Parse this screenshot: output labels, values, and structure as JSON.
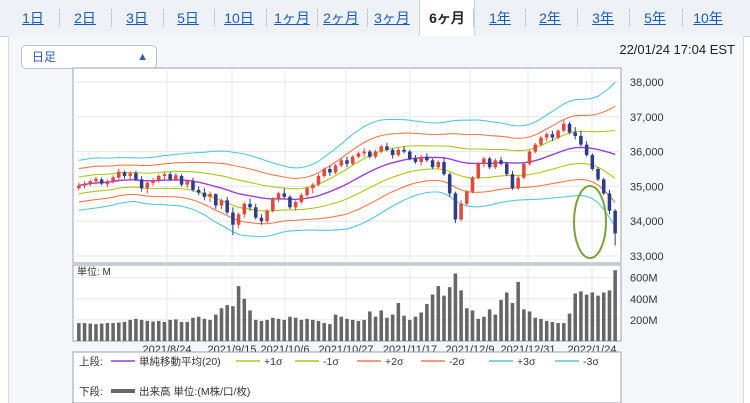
{
  "tabs": [
    {
      "label": "1日",
      "active": false
    },
    {
      "label": "2日",
      "active": false
    },
    {
      "label": "3日",
      "active": false
    },
    {
      "label": "5日",
      "active": false
    },
    {
      "label": "10日",
      "active": false
    },
    {
      "label": "1ヶ月",
      "active": false
    },
    {
      "label": "2ヶ月",
      "active": false
    },
    {
      "label": "3ヶ月",
      "active": false
    },
    {
      "label": "6ヶ月",
      "active": true
    },
    {
      "label": "1年",
      "active": false
    },
    {
      "label": "2年",
      "active": false
    },
    {
      "label": "3年",
      "active": false
    },
    {
      "label": "5年",
      "active": false
    },
    {
      "label": "10年",
      "active": false
    }
  ],
  "interval_select": {
    "value": "日足"
  },
  "timestamp": "22/01/24 17:04 EST",
  "colors": {
    "up": "#e0493d",
    "down": "#2f3c8a",
    "sma": "#9b3fd0",
    "p1": "#a8c91a",
    "m1": "#a8c91a",
    "p2": "#f07a4e",
    "m2": "#f07a4e",
    "p3": "#55c7de",
    "m3": "#55c7de",
    "volume": "#666666",
    "highlight": "#7aa23a"
  },
  "chart_data": {
    "type": "candlestick",
    "price_ticks": [
      38000,
      37000,
      36000,
      35000,
      34000,
      33000
    ],
    "price_tick_labels": [
      "38,000",
      "37,000",
      "36,000",
      "35,000",
      "34,000",
      "33,000"
    ],
    "ylim": [
      32800,
      38400
    ],
    "date_labels": [
      "2021/8/24",
      "2021/9/15",
      "2021/10/6",
      "2021/10/27",
      "2021/11/17",
      "2021/12/9",
      "2021/12/31",
      "2022/1/24"
    ],
    "volume_unit_label": "単位: M",
    "volume_ticks": [
      600,
      400,
      200
    ],
    "volume_tick_labels": [
      "600M",
      "400M",
      "200M"
    ],
    "volume_ylim": [
      0,
      720
    ],
    "ohlc": [
      [
        34950,
        35100,
        34880,
        35020
      ],
      [
        35020,
        35150,
        34950,
        35080
      ],
      [
        35080,
        35200,
        35000,
        35150
      ],
      [
        35150,
        35280,
        35050,
        35220
      ],
      [
        35200,
        35260,
        35030,
        35080
      ],
      [
        35060,
        35200,
        34980,
        35150
      ],
      [
        35150,
        35320,
        35080,
        35260
      ],
      [
        35250,
        35500,
        35200,
        35420
      ],
      [
        35400,
        35450,
        35220,
        35300
      ],
      [
        35300,
        35420,
        35200,
        35380
      ],
      [
        35380,
        35450,
        35150,
        35200
      ],
      [
        35200,
        35300,
        34850,
        34950
      ],
      [
        34950,
        35150,
        34800,
        35100
      ],
      [
        35100,
        35250,
        35020,
        35180
      ],
      [
        35180,
        35350,
        35100,
        35300
      ],
      [
        35300,
        35400,
        35200,
        35350
      ],
      [
        35350,
        35420,
        35150,
        35200
      ],
      [
        35200,
        35380,
        35150,
        35320
      ],
      [
        35300,
        35350,
        35000,
        35050
      ],
      [
        35050,
        35200,
        34950,
        35150
      ],
      [
        35150,
        35250,
        34850,
        34900
      ],
      [
        34900,
        35000,
        34750,
        34820
      ],
      [
        34820,
        34950,
        34600,
        34700
      ],
      [
        34700,
        34850,
        34550,
        34780
      ],
      [
        34780,
        34800,
        34350,
        34450
      ],
      [
        34450,
        34650,
        34350,
        34600
      ],
      [
        34600,
        34700,
        34200,
        34250
      ],
      [
        34250,
        34400,
        33600,
        33900
      ],
      [
        33900,
        34250,
        33800,
        34200
      ],
      [
        34200,
        34550,
        34100,
        34500
      ],
      [
        34500,
        34650,
        34300,
        34400
      ],
      [
        34400,
        34500,
        34050,
        34100
      ],
      [
        34100,
        34200,
        33900,
        34000
      ],
      [
        34000,
        34350,
        33950,
        34300
      ],
      [
        34300,
        34700,
        34250,
        34650
      ],
      [
        34650,
        34850,
        34550,
        34800
      ],
      [
        34800,
        34950,
        34650,
        34700
      ],
      [
        34700,
        34750,
        34350,
        34400
      ],
      [
        34400,
        34600,
        34300,
        34550
      ],
      [
        34550,
        34800,
        34500,
        34750
      ],
      [
        34750,
        35000,
        34700,
        34950
      ],
      [
        34950,
        35100,
        34800,
        35050
      ],
      [
        35050,
        35350,
        35000,
        35300
      ],
      [
        35300,
        35550,
        35250,
        35500
      ],
      [
        35500,
        35600,
        35300,
        35400
      ],
      [
        35400,
        35650,
        35350,
        35600
      ],
      [
        35600,
        35800,
        35550,
        35750
      ],
      [
        35750,
        35850,
        35550,
        35650
      ],
      [
        35650,
        35900,
        35600,
        35850
      ],
      [
        35850,
        36000,
        35800,
        35950
      ],
      [
        35950,
        36100,
        35850,
        36000
      ],
      [
        36000,
        36050,
        35800,
        35850
      ],
      [
        35850,
        36050,
        35800,
        36000
      ],
      [
        36000,
        36200,
        35950,
        36150
      ],
      [
        36150,
        36250,
        36000,
        36050
      ],
      [
        36050,
        36100,
        35800,
        35900
      ],
      [
        35900,
        36100,
        35850,
        36050
      ],
      [
        36050,
        36150,
        35950,
        36000
      ],
      [
        36000,
        36050,
        35750,
        35800
      ],
      [
        35800,
        35900,
        35650,
        35700
      ],
      [
        35700,
        35900,
        35600,
        35850
      ],
      [
        35850,
        35950,
        35700,
        35750
      ],
      [
        35750,
        35800,
        35500,
        35550
      ],
      [
        35550,
        35750,
        35500,
        35700
      ],
      [
        35700,
        35800,
        35300,
        35350
      ],
      [
        35350,
        35400,
        34700,
        34800
      ],
      [
        34800,
        34850,
        33950,
        34050
      ],
      [
        34050,
        34600,
        34000,
        34500
      ],
      [
        34500,
        34900,
        34450,
        34850
      ],
      [
        34850,
        35300,
        34800,
        35250
      ],
      [
        35250,
        35700,
        35200,
        35650
      ],
      [
        35650,
        35850,
        35550,
        35800
      ],
      [
        35800,
        35850,
        35500,
        35550
      ],
      [
        35550,
        35800,
        35500,
        35750
      ],
      [
        35750,
        35850,
        35600,
        35650
      ],
      [
        35650,
        35700,
        35300,
        35350
      ],
      [
        35350,
        35450,
        34900,
        34950
      ],
      [
        34950,
        35300,
        34900,
        35250
      ],
      [
        35250,
        35700,
        35200,
        35650
      ],
      [
        35650,
        36050,
        35600,
        36000
      ],
      [
        36000,
        36250,
        35950,
        36200
      ],
      [
        36200,
        36450,
        36150,
        36400
      ],
      [
        36400,
        36550,
        36300,
        36500
      ],
      [
        36500,
        36600,
        36300,
        36400
      ],
      [
        36400,
        36650,
        36350,
        36600
      ],
      [
        36600,
        36900,
        36550,
        36800
      ],
      [
        36800,
        36850,
        36500,
        36550
      ],
      [
        36550,
        36700,
        36350,
        36450
      ],
      [
        36450,
        36600,
        36150,
        36200
      ],
      [
        36200,
        36300,
        35850,
        35900
      ],
      [
        35900,
        35950,
        35450,
        35500
      ],
      [
        35500,
        35550,
        35150,
        35200
      ],
      [
        35200,
        35250,
        34750,
        34800
      ],
      [
        34800,
        34900,
        34200,
        34300
      ],
      [
        34300,
        34350,
        33300,
        33650
      ]
    ],
    "sma": [
      35030,
      35055,
      35080,
      35100,
      35110,
      35120,
      35140,
      35170,
      35180,
      35190,
      35190,
      35170,
      35160,
      35160,
      35170,
      35180,
      35180,
      35190,
      35180,
      35170,
      35150,
      35120,
      35080,
      35040,
      34990,
      34950,
      34900,
      34840,
      34790,
      34760,
      34730,
      34700,
      34670,
      34650,
      34640,
      34640,
      34640,
      34630,
      34630,
      34640,
      34660,
      34690,
      34730,
      34790,
      34850,
      34920,
      34990,
      35070,
      35160,
      35250,
      35340,
      35420,
      35500,
      35570,
      35630,
      35680,
      35720,
      35760,
      35790,
      35810,
      35820,
      35830,
      35830,
      35830,
      35820,
      35790,
      35740,
      35700,
      35670,
      35660,
      35660,
      35660,
      35660,
      35670,
      35680,
      35680,
      35670,
      35670,
      35680,
      35700,
      35740,
      35790,
      35850,
      35910,
      35970,
      36030,
      36080,
      36110,
      36120,
      36110,
      36090,
      36060,
      36020,
      35970,
      35920
    ],
    "sigma": [
      240,
      240,
      240,
      240,
      235,
      230,
      225,
      220,
      215,
      210,
      210,
      215,
      220,
      225,
      230,
      235,
      240,
      245,
      250,
      260,
      270,
      285,
      300,
      320,
      340,
      355,
      370,
      380,
      390,
      390,
      385,
      380,
      370,
      360,
      345,
      330,
      315,
      305,
      300,
      300,
      305,
      315,
      330,
      350,
      370,
      390,
      410,
      430,
      445,
      455,
      460,
      460,
      455,
      445,
      430,
      415,
      400,
      385,
      370,
      355,
      345,
      335,
      330,
      330,
      340,
      360,
      385,
      400,
      410,
      415,
      415,
      410,
      400,
      390,
      380,
      370,
      360,
      355,
      355,
      360,
      370,
      385,
      400,
      415,
      430,
      445,
      455,
      460,
      460,
      465,
      480,
      510,
      560,
      620,
      690
    ],
    "volume": [
      170,
      170,
      165,
      160,
      165,
      170,
      170,
      175,
      180,
      200,
      210,
      200,
      190,
      185,
      190,
      180,
      200,
      205,
      180,
      180,
      220,
      230,
      210,
      200,
      250,
      310,
      340,
      330,
      520,
      400,
      290,
      200,
      190,
      200,
      220,
      210,
      200,
      230,
      220,
      200,
      210,
      200,
      190,
      170,
      160,
      250,
      230,
      210,
      200,
      190,
      200,
      280,
      230,
      290,
      220,
      250,
      360,
      240,
      200,
      230,
      270,
      350,
      440,
      520,
      430,
      510,
      640,
      480,
      310,
      290,
      210,
      230,
      300,
      250,
      390,
      460,
      360,
      560,
      300,
      280,
      220,
      210,
      190,
      180,
      170,
      170,
      260,
      450,
      470,
      440,
      460,
      430,
      460,
      480,
      670
    ]
  },
  "legend": {
    "upper_label": "上段:",
    "lower_label": "下段:",
    "items": [
      "単純移動平均(20)",
      "+1σ",
      "-1σ",
      "+2σ",
      "-2σ",
      "+3σ",
      "-3σ"
    ],
    "volume_item": "出来高 単位:(M株/口/枚)"
  }
}
